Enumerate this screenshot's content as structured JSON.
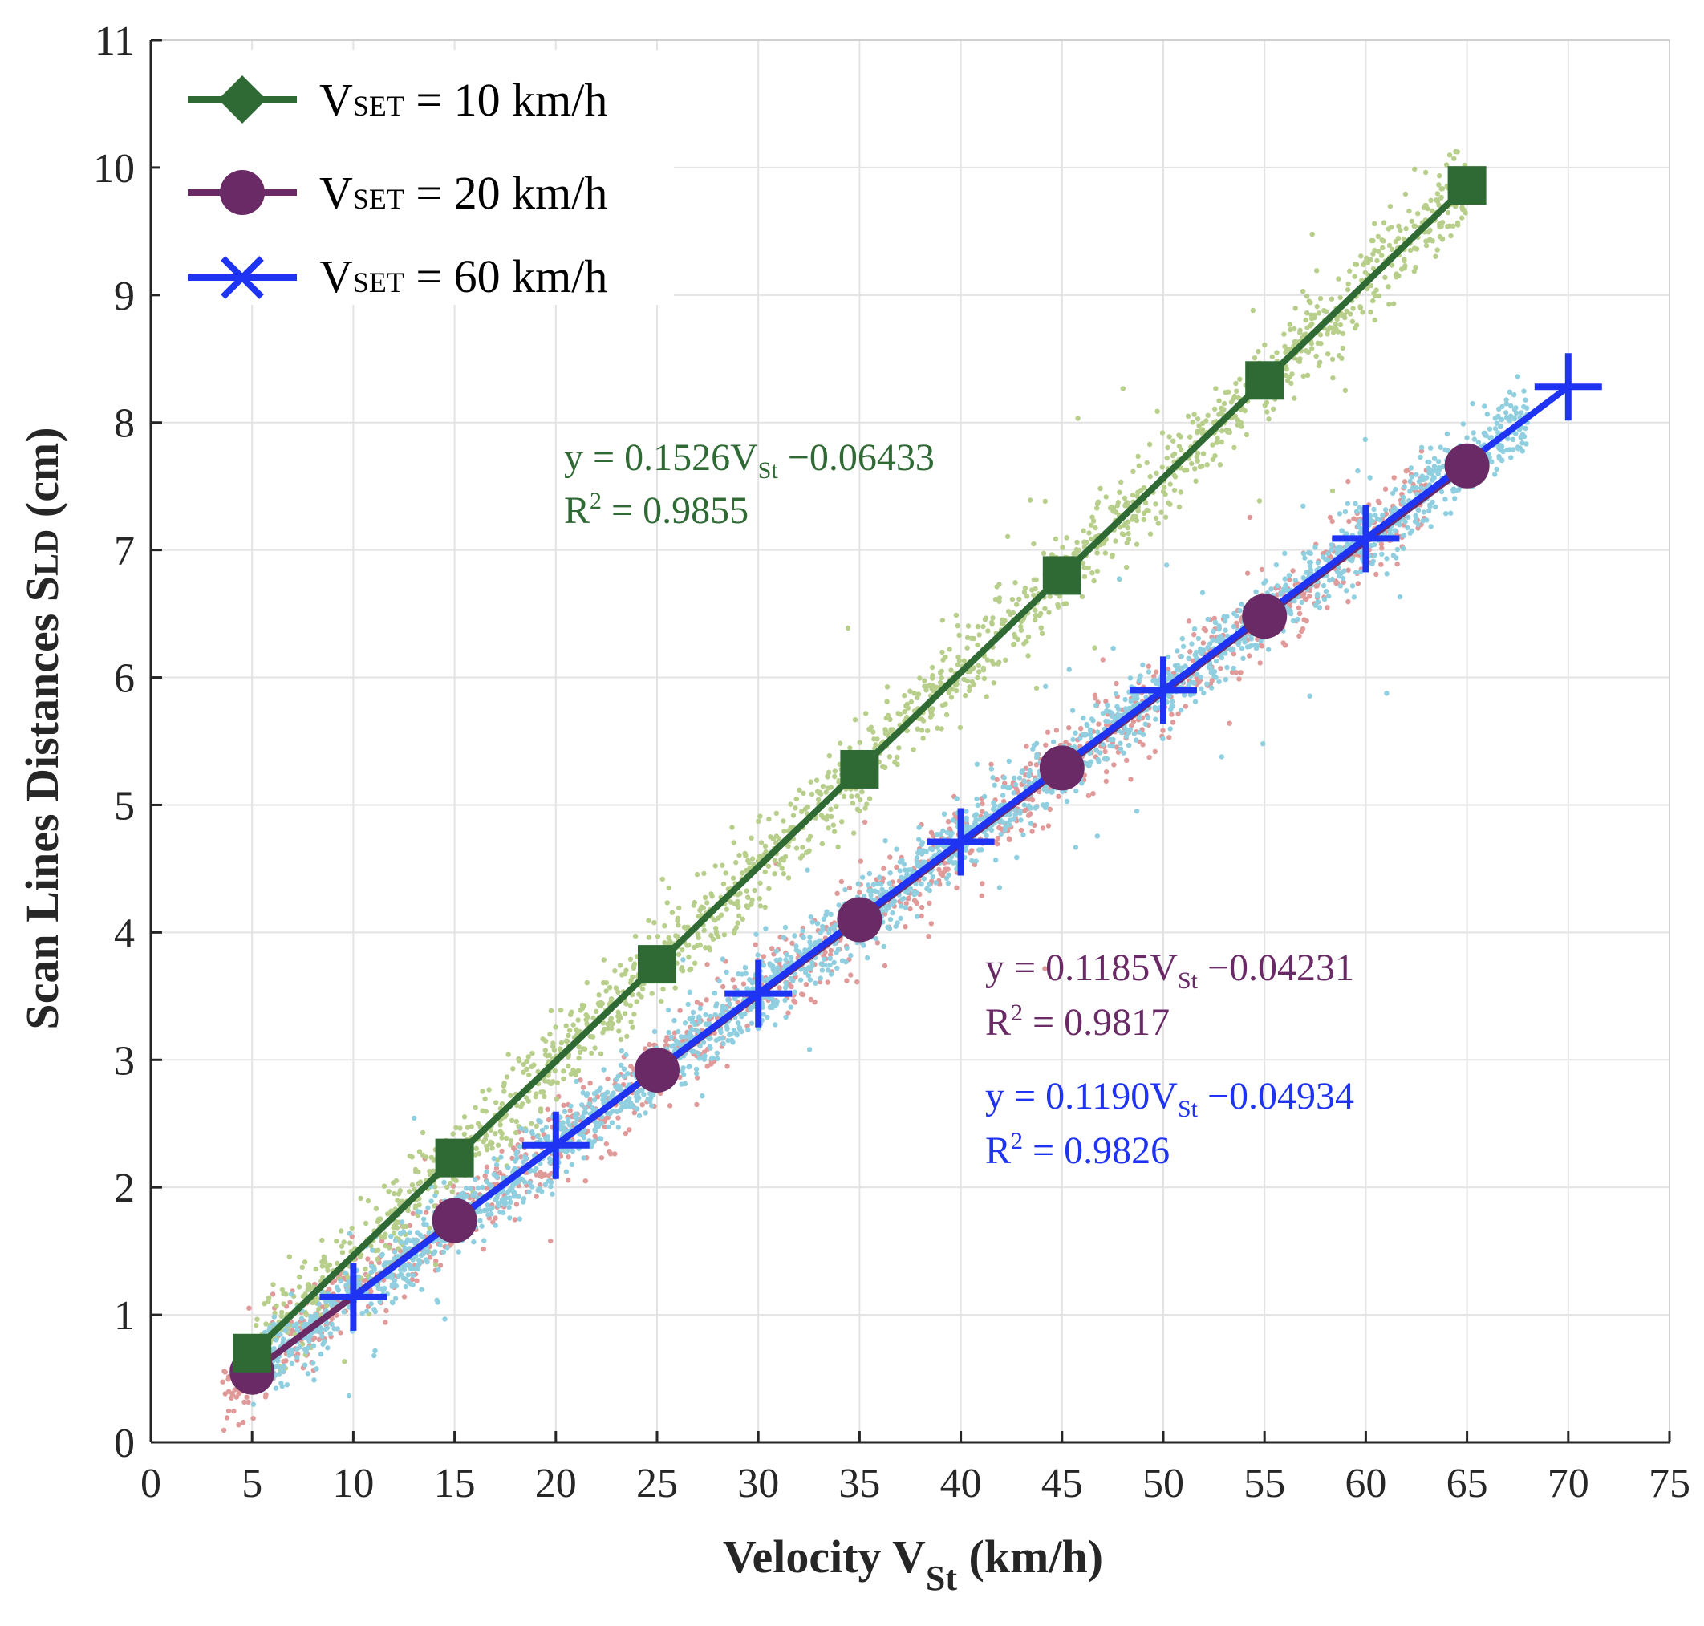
{
  "chart_data": {
    "type": "scatter",
    "xlabel_main": "Velocity V",
    "xlabel_sub": "St",
    "xlabel_unit": " (km/h)",
    "ylabel_main": "Scan Lines Distances  S",
    "ylabel_sub": "LD",
    "ylabel_unit": " (cm)",
    "xlim": [
      0,
      75
    ],
    "ylim": [
      0,
      11
    ],
    "xticks": [
      "0",
      "5",
      "10",
      "15",
      "20",
      "25",
      "30",
      "35",
      "40",
      "45",
      "50",
      "55",
      "60",
      "65",
      "70",
      "75"
    ],
    "yticks": [
      "0",
      "1",
      "2",
      "3",
      "4",
      "5",
      "6",
      "7",
      "8",
      "9",
      "10",
      "11"
    ],
    "grid": true,
    "legend_position": "top-left",
    "series": [
      {
        "name": "VSET = 10 km/h",
        "legend_prefix": "V",
        "legend_sub": "SET",
        "legend_rest": " = 10 km/h",
        "color": "#2F6A34",
        "scatter_color": "#B7CF8B",
        "marker": "square",
        "legend_marker": "diamond",
        "x": [
          5,
          15,
          25,
          35,
          45,
          55,
          65
        ],
        "y": [
          0.7,
          2.23,
          3.75,
          5.28,
          6.8,
          8.33,
          9.86
        ],
        "fit": {
          "slope": 0.1526,
          "intercept": -0.06433,
          "r2": 0.9855
        },
        "eq_text": "y  = 0.1526V",
        "eq_sub": "St",
        "eq_tail": " −0.06433",
        "r2_text": "R",
        "r2_sup": "2",
        "r2_tail": " = 0.9855"
      },
      {
        "name": "VSET = 20 km/h",
        "legend_prefix": "V",
        "legend_sub": "SET",
        "legend_rest": " = 20 km/h",
        "color": "#6A2A66",
        "scatter_color": "#E09A9A",
        "marker": "circle",
        "legend_marker": "circle",
        "x": [
          5,
          15,
          25,
          35,
          45,
          55,
          65
        ],
        "y": [
          0.55,
          1.74,
          2.92,
          4.1,
          5.29,
          6.48,
          7.66
        ],
        "fit": {
          "slope": 0.1185,
          "intercept": -0.04231,
          "r2": 0.9817
        },
        "eq_text": "y   = 0.1185V",
        "eq_sub": "St",
        "eq_tail": " −0.04231",
        "r2_text": "R",
        "r2_sup": "2",
        "r2_tail": " = 0.9817"
      },
      {
        "name": "VSET = 60 km/h",
        "legend_prefix": "V",
        "legend_sub": "SET",
        "legend_rest": " = 60 km/h",
        "color": "#1E34F2",
        "scatter_color": "#8FCFE0",
        "marker": "plus",
        "legend_marker": "x",
        "x": [
          10,
          20,
          30,
          40,
          50,
          60,
          70
        ],
        "y": [
          1.14,
          2.33,
          3.52,
          4.71,
          5.9,
          7.09,
          8.28
        ],
        "fit": {
          "slope": 0.119,
          "intercept": -0.04934,
          "r2": 0.9826
        },
        "eq_text": "y   = 0.1190V",
        "eq_sub": "St",
        "eq_tail": " −0.04934",
        "r2_text": "R",
        "r2_sup": "2",
        "r2_tail": " = 0.9826"
      }
    ]
  }
}
